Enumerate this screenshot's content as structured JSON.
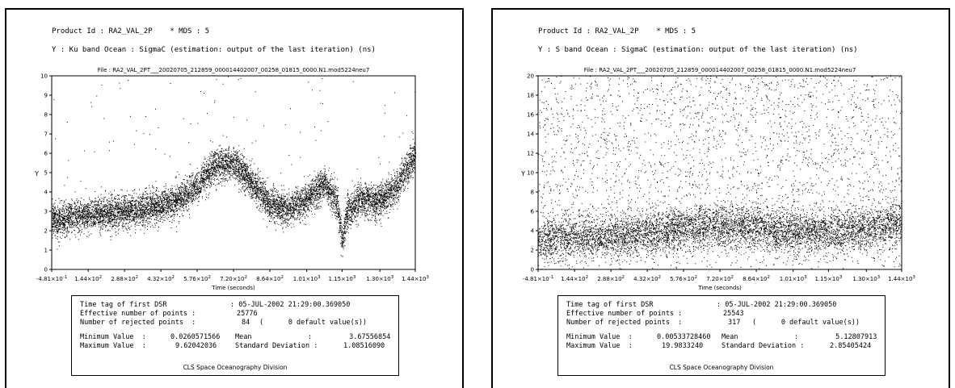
{
  "panels": [
    {
      "product_label": "Product Id : RA2_VAL_2P",
      "mds_label": "* MDS : 5",
      "y_description": "Y : Ku band Ocean : SigmaC (estimation: output of the last iteration) (ns)",
      "file_label": "File : RA2_VAL_2PT___20020705_212859_000014402007_00258_01815_0000.N1.mod5224neu7",
      "stats": {
        "time_tag_label": "Time tag of first DSR",
        "time_tag_value": ": 05-JUL-2002 21:29:00.369050",
        "effective_label": "Effective number of points :",
        "effective_value": "25776",
        "rejected_label": "Number of rejected points  :",
        "rejected_value": "84",
        "default_values": "(      0 default value(s))",
        "min_label": "Minimum Value  :",
        "min_value": "0.0260571566",
        "max_label": "Maximum Value  :",
        "max_value": "9.62042036",
        "mean_label": "Mean",
        "mean_value": ":         3.67556854",
        "std_label": "Standard Deviation :",
        "std_value": "1.08516090",
        "footer": "CLS Space Oceanography Division"
      }
    },
    {
      "product_label": "Product Id : RA2_VAL_2P",
      "mds_label": "* MDS : 5",
      "y_description": "Y : S band Ocean : SigmaC (estimation: output of the last iteration) (ns)",
      "file_label": "File : RA2_VAL_2PT___20020705_212859_000014402007_00258_01815_0000.N1.mod5224neu7",
      "stats": {
        "time_tag_label": "Time tag of first DSR",
        "time_tag_value": ": 05-JUL-2002 21:29:00.369050",
        "effective_label": "Effective number of points :",
        "effective_value": "25543",
        "rejected_label": "Number of rejected points  :",
        "rejected_value": "317",
        "default_values": "(      0 default value(s))",
        "min_label": "Minimum Value  :",
        "min_value": "0.00533728460",
        "max_label": "Maximum Value  :",
        "max_value": "19.9833240",
        "mean_label": "Mean",
        "mean_value": ":         5.12807913",
        "std_label": "Standard Deviation :",
        "std_value": "2.85405424",
        "footer": "CLS Space Oceanography Division"
      }
    }
  ],
  "chart_data": [
    {
      "type": "scatter",
      "title": "",
      "xlabel": "Time (seconds)",
      "ylabel": "Y",
      "xlim": [
        -0.481,
        1440
      ],
      "ylim": [
        0,
        10
      ],
      "x_tick_values": [
        -0.481,
        144,
        288,
        432,
        576,
        720,
        864,
        1010,
        1150,
        1300,
        1440
      ],
      "x_tick_labels": [
        {
          "m": "-4.81×10",
          "e": "-1"
        },
        {
          "m": "1.44×10",
          "e": "2"
        },
        {
          "m": "2.88×10",
          "e": "2"
        },
        {
          "m": "4.32×10",
          "e": "2"
        },
        {
          "m": "5.76×10",
          "e": "2"
        },
        {
          "m": "7.20×10",
          "e": "2"
        },
        {
          "m": "8.64×10",
          "e": "2"
        },
        {
          "m": "1.01×10",
          "e": "3"
        },
        {
          "m": "1.15×10",
          "e": "3"
        },
        {
          "m": "1.30×10",
          "e": "3"
        },
        {
          "m": "1.44×10",
          "e": "3"
        }
      ],
      "y_ticks": [
        0,
        1,
        2,
        3,
        4,
        5,
        6,
        7,
        8,
        9,
        10
      ],
      "y_tick_labels": [
        "0",
        "1",
        "2",
        "3",
        "4",
        "5",
        "6",
        "7",
        "8",
        "9",
        "10"
      ],
      "trend_x": [
        0,
        72,
        144,
        216,
        288,
        360,
        432,
        504,
        576,
        648,
        720,
        792,
        864,
        936,
        1008,
        1080,
        1130,
        1150,
        1170,
        1224,
        1296,
        1368,
        1440
      ],
      "trend_y": [
        2.5,
        2.7,
        2.8,
        2.9,
        3.0,
        3.1,
        3.3,
        3.6,
        4.3,
        5.4,
        5.5,
        4.5,
        3.4,
        3.1,
        3.6,
        4.5,
        3.4,
        1.5,
        3.0,
        3.6,
        3.5,
        4.3,
        6.0
      ],
      "spread": 0.42,
      "n_points": 25776
    },
    {
      "type": "scatter",
      "title": "",
      "xlabel": "Time (seconds)",
      "ylabel": "Y",
      "xlim": [
        -0.481,
        1440
      ],
      "ylim": [
        0,
        20
      ],
      "x_tick_values": [
        -0.481,
        144,
        288,
        432,
        576,
        720,
        864,
        1010,
        1150,
        1300,
        1440
      ],
      "x_tick_labels": [
        {
          "m": "-4.81×10",
          "e": "-1"
        },
        {
          "m": "1.44×10",
          "e": "2"
        },
        {
          "m": "2.88×10",
          "e": "2"
        },
        {
          "m": "4.32×10",
          "e": "2"
        },
        {
          "m": "5.76×10",
          "e": "2"
        },
        {
          "m": "7.20×10",
          "e": "2"
        },
        {
          "m": "8.64×10",
          "e": "2"
        },
        {
          "m": "1.01×10",
          "e": "3"
        },
        {
          "m": "1.15×10",
          "e": "3"
        },
        {
          "m": "1.30×10",
          "e": "3"
        },
        {
          "m": "1.44×10",
          "e": "3"
        }
      ],
      "y_ticks": [
        0,
        2,
        4,
        6,
        8,
        10,
        12,
        14,
        16,
        18,
        20
      ],
      "y_tick_labels": [
        "0",
        "2",
        "4",
        "6",
        "8",
        "10",
        "12",
        "14",
        "16",
        "18",
        "20"
      ],
      "trend_x": [
        0,
        144,
        288,
        432,
        576,
        720,
        864,
        1008,
        1152,
        1296,
        1440
      ],
      "trend_y": [
        3.0,
        3.4,
        3.3,
        3.8,
        4.2,
        4.5,
        4.3,
        3.9,
        3.8,
        4.2,
        4.8
      ],
      "spread": 1.1,
      "n_points": 25543
    }
  ]
}
